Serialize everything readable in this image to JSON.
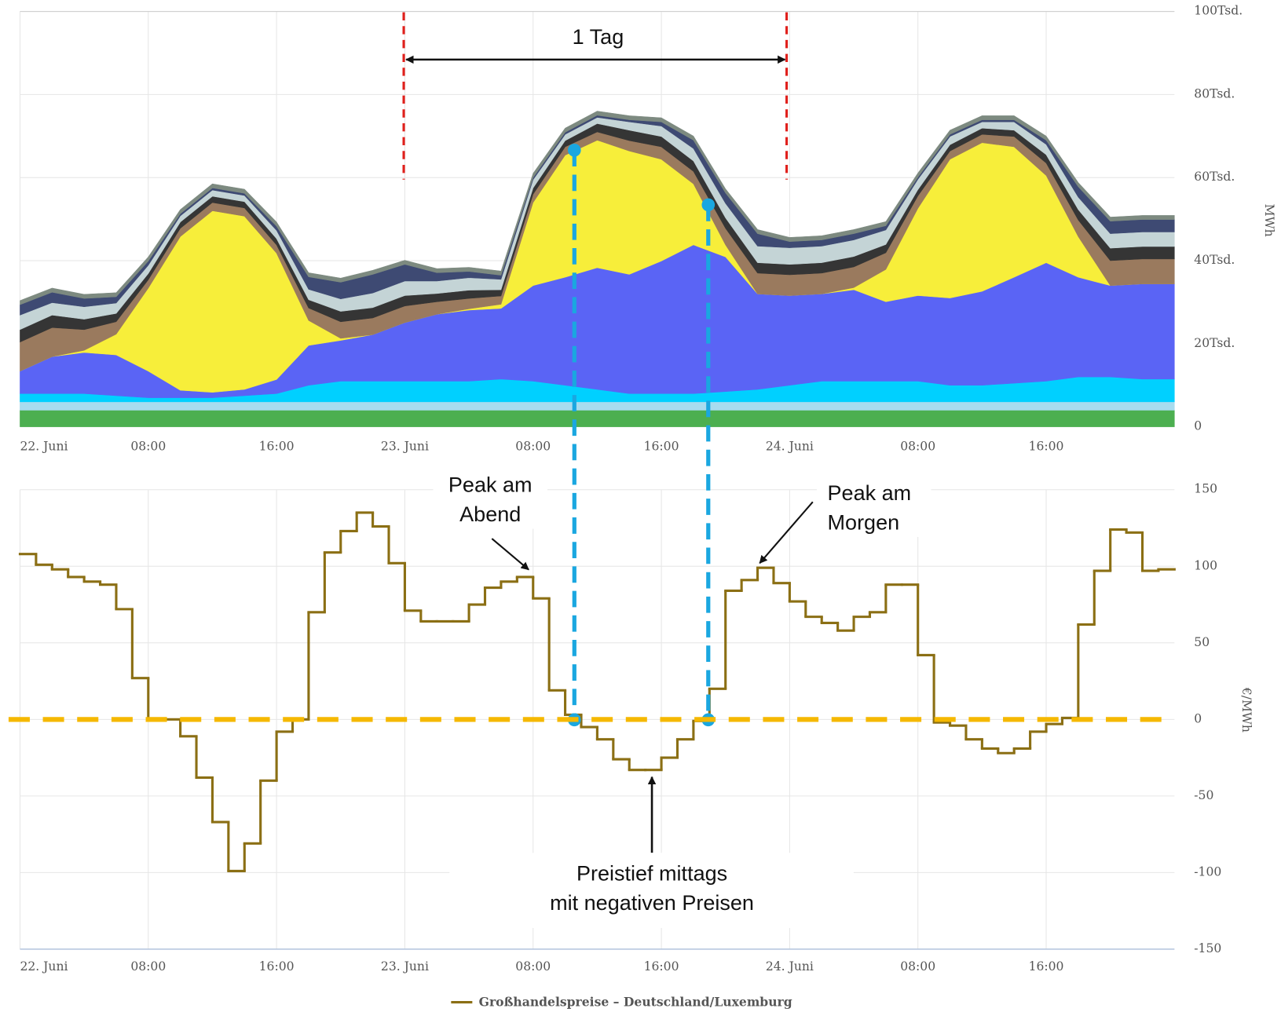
{
  "chart_data": [
    {
      "type": "area",
      "stacked": true,
      "y_label": "MWh",
      "categories": [
        "22. Juni",
        null,
        null,
        null,
        "08:00",
        null,
        null,
        null,
        "16:00",
        null,
        null,
        null,
        "23. Juni",
        null,
        null,
        null,
        "08:00",
        null,
        null,
        null,
        "16:00",
        null,
        null,
        null,
        "24. Juni",
        null,
        null,
        null,
        "08:00",
        null,
        null,
        null,
        "16:00",
        null,
        null,
        null,
        null
      ],
      "ylim": [
        0,
        100000
      ],
      "yticks": [
        0,
        {
          "value": 20000,
          "label": "20Tsd."
        },
        {
          "value": 40000,
          "label": "40Tsd."
        },
        {
          "value": 60000,
          "label": "60Tsd."
        },
        {
          "value": 80000,
          "label": "80Tsd."
        },
        {
          "value": 100000,
          "label": "100Tsd."
        }
      ],
      "grid": true,
      "annotations": [
        {
          "lines": [
            "1 Tag"
          ]
        }
      ],
      "series": [
        {
          "color": "#4caf50",
          "values": [
            4000,
            4000,
            4000,
            4000,
            4000,
            4000,
            4000,
            4000,
            4000,
            4000,
            4000,
            4000,
            4000,
            4000,
            4000,
            4000,
            4000,
            4000,
            4000,
            4000,
            4000,
            4000,
            4000,
            4000,
            4000,
            4000,
            4000,
            4000,
            4000,
            4000,
            4000,
            4000,
            4000,
            4000,
            4000,
            4000,
            4000
          ]
        },
        {
          "color": "#a8dcef",
          "values": [
            2000,
            2000,
            2000,
            2000,
            2000,
            2000,
            2000,
            2000,
            2000,
            2000,
            2000,
            2000,
            2000,
            2000,
            2000,
            2000,
            2000,
            2000,
            2000,
            2000,
            2000,
            2000,
            2000,
            2000,
            2000,
            2000,
            2000,
            2000,
            2000,
            2000,
            2000,
            2000,
            2000,
            2000,
            2000,
            2000,
            2000
          ]
        },
        {
          "color": "#00d0ff",
          "values": [
            2000,
            2000,
            2000,
            1500,
            1000,
            1000,
            1000,
            1500,
            2000,
            4000,
            5000,
            5000,
            5000,
            5000,
            5000,
            5500,
            5000,
            4000,
            3000,
            2000,
            2000,
            2000,
            2500,
            3000,
            4000,
            5000,
            5000,
            5000,
            5000,
            4000,
            4000,
            4500,
            5000,
            6000,
            6000,
            5500,
            5500
          ]
        },
        {
          "color": "#5a64f5",
          "values": [
            5400,
            8900,
            9900,
            9800,
            6400,
            1800,
            1300,
            1500,
            3400,
            9600,
            9800,
            11200,
            14100,
            16100,
            17100,
            17000,
            23000,
            26000,
            29300,
            28700,
            31900,
            35800,
            32400,
            23000,
            21600,
            21000,
            22000,
            19100,
            20600,
            21000,
            22600,
            25500,
            28500,
            24000,
            22000,
            22900,
            22900
          ]
        },
        {
          "color": "#f7ee3a",
          "values": [
            0,
            0,
            500,
            5000,
            20000,
            37000,
            43700,
            41700,
            30400,
            6000,
            500,
            0,
            0,
            0,
            300,
            1000,
            20000,
            29400,
            30700,
            29700,
            24500,
            14700,
            2900,
            0,
            0,
            0,
            500,
            7800,
            21000,
            33400,
            35800,
            31400,
            21000,
            9800,
            0,
            0,
            0
          ]
        },
        {
          "color": "#9a7a5e",
          "values": [
            7000,
            7000,
            5000,
            3000,
            2000,
            2000,
            2000,
            2000,
            2000,
            3000,
            4000,
            4000,
            4000,
            3000,
            2500,
            2000,
            2000,
            2000,
            2000,
            2500,
            3000,
            3000,
            4000,
            5000,
            5000,
            5000,
            5000,
            4000,
            3000,
            2000,
            2000,
            2500,
            3000,
            4000,
            6000,
            6000,
            6000
          ]
        },
        {
          "color": "#353535",
          "values": [
            3000,
            3000,
            2500,
            2000,
            1500,
            1500,
            1500,
            1500,
            1500,
            2000,
            2500,
            2500,
            2500,
            2000,
            2000,
            1500,
            1500,
            1500,
            2000,
            2500,
            2500,
            2500,
            2500,
            2500,
            2500,
            2500,
            2500,
            2000,
            1500,
            1500,
            1500,
            1500,
            2000,
            2500,
            3000,
            3000,
            3000
          ]
        },
        {
          "color": "#c4d4d6",
          "values": [
            3500,
            3000,
            3000,
            2500,
            2000,
            1500,
            1500,
            1500,
            2000,
            2500,
            3000,
            3500,
            3500,
            3000,
            3000,
            2500,
            2000,
            1500,
            1500,
            2000,
            2500,
            3000,
            3500,
            4000,
            4000,
            4000,
            4000,
            3500,
            2500,
            2000,
            1500,
            2000,
            2500,
            3000,
            3500,
            3500,
            3500
          ]
        },
        {
          "color": "#3e4a73",
          "values": [
            2500,
            2500,
            2000,
            1500,
            1000,
            500,
            500,
            500,
            1000,
            3000,
            4000,
            4500,
            4000,
            2000,
            1500,
            1000,
            500,
            500,
            500,
            500,
            1000,
            2000,
            2500,
            3000,
            1500,
            1500,
            1500,
            1000,
            500,
            500,
            500,
            500,
            1000,
            2500,
            3000,
            3000,
            3000
          ]
        },
        {
          "color": "#7d8a80",
          "values": [
            1000,
            1000,
            1000,
            1000,
            1000,
            1000,
            1000,
            1000,
            1000,
            1000,
            1000,
            1000,
            1000,
            1000,
            1000,
            1000,
            1000,
            1000,
            1000,
            1000,
            1000,
            1000,
            1000,
            1000,
            1000,
            1000,
            1000,
            1000,
            1000,
            1000,
            1000,
            1000,
            1000,
            1000,
            1000,
            1000,
            1000
          ]
        }
      ]
    },
    {
      "type": "step",
      "y_label": "€/MWh",
      "categories": [
        "22. Juni",
        null,
        null,
        null,
        null,
        null,
        null,
        null,
        "08:00",
        null,
        null,
        null,
        null,
        null,
        null,
        null,
        "16:00",
        null,
        null,
        null,
        null,
        null,
        null,
        null,
        "23. Juni",
        null,
        null,
        null,
        null,
        null,
        null,
        null,
        "08:00",
        null,
        null,
        null,
        null,
        null,
        null,
        null,
        "16:00",
        null,
        null,
        null,
        null,
        null,
        null,
        null,
        "24. Juni",
        null,
        null,
        null,
        null,
        null,
        null,
        null,
        "08:00",
        null,
        null,
        null,
        null,
        null,
        null,
        null,
        "16:00",
        null,
        null,
        null,
        null,
        null,
        null,
        null
      ],
      "ylim": [
        -150,
        150
      ],
      "yticks": [
        -150,
        -100,
        -50,
        0,
        50,
        100,
        150
      ],
      "grid": true,
      "annotations": [
        {
          "lines": [
            "Peak am",
            "Abend"
          ]
        },
        {
          "lines": [
            "Peak am",
            "Morgen"
          ]
        },
        {
          "lines": [
            "Preistief mittags",
            "mit negativen Preisen"
          ]
        }
      ],
      "series": [
        {
          "name": "Großhandelspreise – Deutschland/Luxemburg",
          "color": "#8b6f14",
          "values": [
            108,
            101,
            98,
            93,
            90,
            88,
            72,
            27,
            0,
            0,
            -11,
            -38,
            -67,
            -99,
            -81,
            -40,
            -8,
            0,
            70,
            109,
            123,
            135,
            126,
            102,
            71,
            64,
            64,
            64,
            75,
            86,
            90,
            93,
            79,
            19,
            3,
            -5,
            -13,
            -26,
            -33,
            -33,
            -25,
            -13,
            -1,
            20,
            84,
            91,
            99,
            89,
            77,
            67,
            63,
            58,
            67,
            70,
            88,
            88,
            42,
            -2,
            -4,
            -13,
            -19,
            -22,
            -19,
            -8,
            -3,
            1,
            62,
            97,
            124,
            122,
            97,
            98
          ]
        }
      ]
    }
  ]
}
